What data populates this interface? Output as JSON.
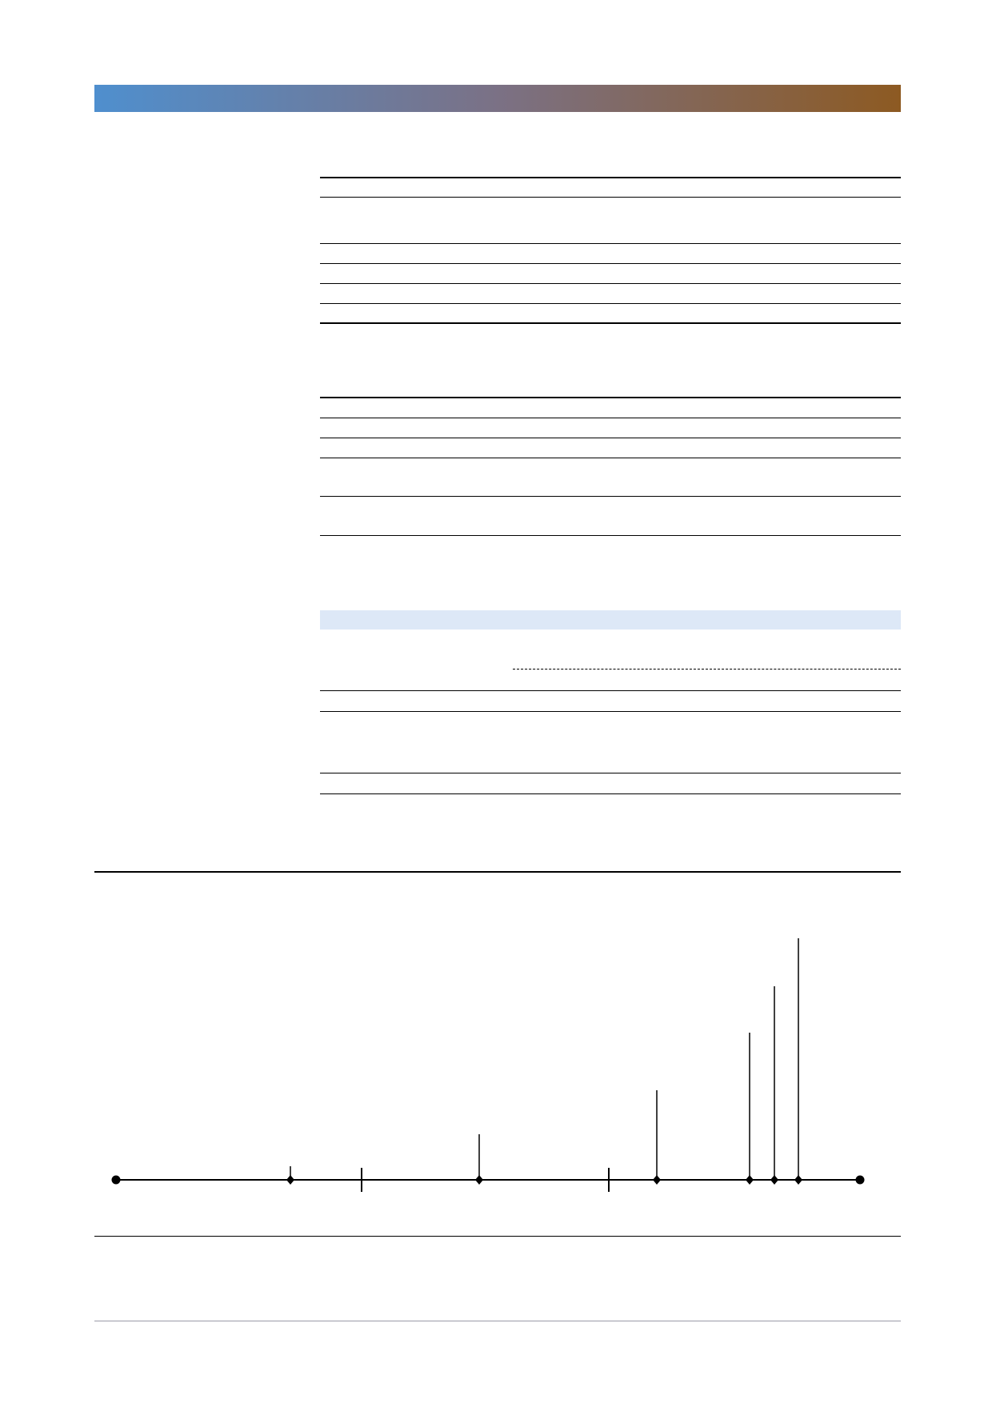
{
  "colors": {
    "header_start": "#4f8fce",
    "header_mid": "#7b7185",
    "header_end": "#8d5a22",
    "table_band": "#dde8f7",
    "rule": "#000000",
    "footer_rule": "#9a9aa8"
  },
  "tables": [
    {
      "name": "table-1",
      "rows": 7
    },
    {
      "name": "table-2",
      "rows": 6
    },
    {
      "name": "table-3",
      "rows": 6
    }
  ],
  "timeline": {
    "endpoints": 2,
    "markers": 7,
    "ticks": 2
  }
}
